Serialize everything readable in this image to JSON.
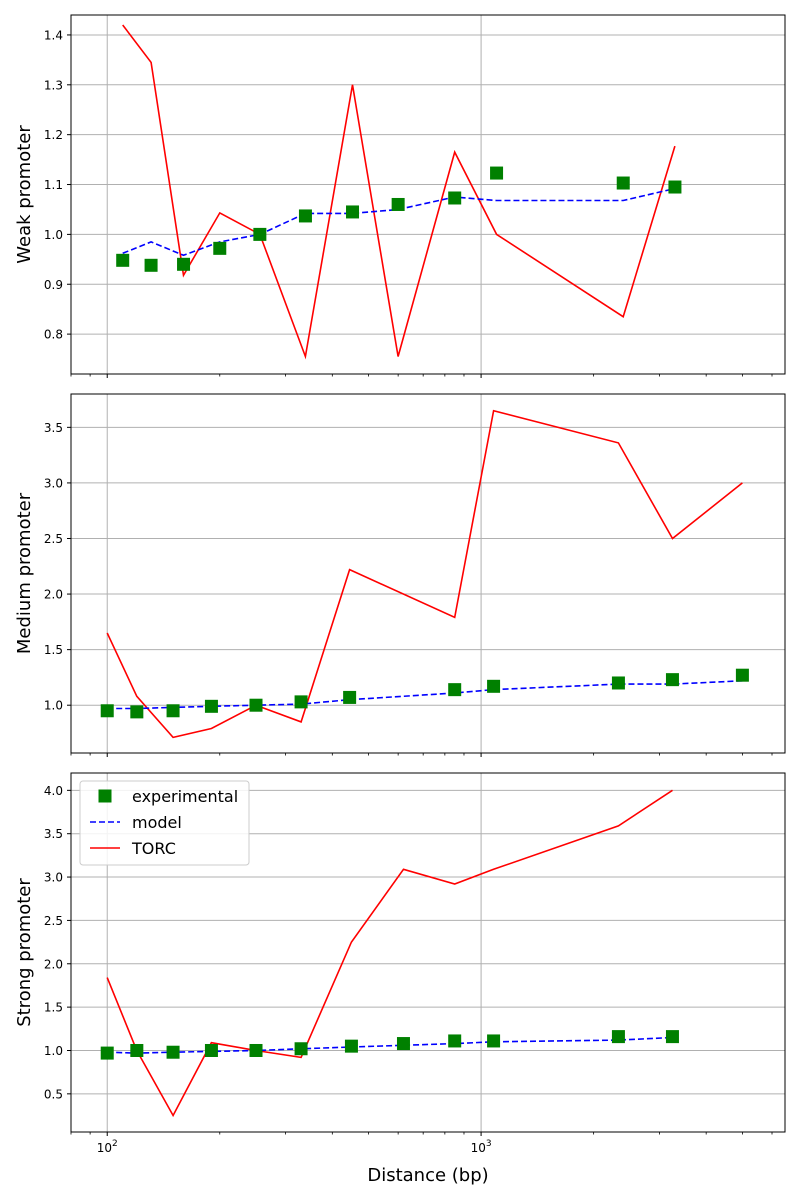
{
  "figure": {
    "xlabel": "Distance (bp)",
    "xscale": "log",
    "xlim": [
      80,
      6500
    ],
    "x_major_ticks": [
      100,
      1000
    ],
    "x_major_tick_labels": [
      {
        "base": "10",
        "exp": "2"
      },
      {
        "base": "10",
        "exp": "3"
      }
    ],
    "grid": true,
    "colors": {
      "experimental": "#008000",
      "model": "#0000ff",
      "torc": "#ff0000",
      "grid": "#b0b0b0"
    }
  },
  "legend": {
    "placement": "top-left",
    "panel": 2,
    "entries": [
      {
        "key": "experimental",
        "label": "experimental"
      },
      {
        "key": "model",
        "label": "model"
      },
      {
        "key": "torc",
        "label": "TORC"
      }
    ]
  },
  "chart_data": [
    {
      "type": "line",
      "ylabel": "Weak promoter",
      "ylim": [
        0.72,
        1.44
      ],
      "yticks": [
        0.8,
        0.9,
        1.0,
        1.1,
        1.2,
        1.3,
        1.4
      ],
      "ytick_labels": [
        "0.8",
        "0.9",
        "1.0",
        "1.1",
        "1.2",
        "1.3",
        "1.4"
      ],
      "series": [
        {
          "key": "experimental",
          "style": "markers",
          "x": [
            110,
            131,
            160,
            200,
            256,
            339,
            453,
            600,
            850,
            1100,
            2400,
            3300
          ],
          "y": [
            0.948,
            0.938,
            0.94,
            0.972,
            1.0,
            1.037,
            1.045,
            1.06,
            1.073,
            1.123,
            1.103,
            1.095
          ]
        },
        {
          "key": "model",
          "style": "dashed",
          "x": [
            110,
            131,
            160,
            200,
            256,
            339,
            453,
            600,
            850,
            1100,
            2400,
            3300
          ],
          "y": [
            0.962,
            0.985,
            0.958,
            0.985,
            1.0,
            1.042,
            1.042,
            1.05,
            1.075,
            1.068,
            1.068,
            1.092
          ]
        },
        {
          "key": "torc",
          "style": "solid",
          "x": [
            110,
            131,
            160,
            200,
            256,
            339,
            453,
            600,
            850,
            1100,
            2400,
            3300
          ],
          "y": [
            1.42,
            1.345,
            0.918,
            1.043,
            1.0,
            0.755,
            1.3,
            0.755,
            1.165,
            1.0,
            0.835,
            1.177
          ]
        }
      ]
    },
    {
      "type": "line",
      "ylabel": "Medium promoter",
      "ylim": [
        0.57,
        3.8
      ],
      "yticks": [
        1.0,
        1.5,
        2.0,
        2.5,
        3.0,
        3.5
      ],
      "ytick_labels": [
        "1.0",
        "1.5",
        "2.0",
        "2.5",
        "3.0",
        "3.5"
      ],
      "series": [
        {
          "key": "experimental",
          "style": "markers",
          "x": [
            100,
            120,
            150,
            190,
            250,
            330,
            445,
            850,
            1080,
            2330,
            3250,
            5000
          ],
          "y": [
            0.95,
            0.94,
            0.95,
            0.99,
            1.0,
            1.03,
            1.07,
            1.14,
            1.17,
            1.2,
            1.23,
            1.27
          ]
        },
        {
          "key": "model",
          "style": "dashed",
          "x": [
            100,
            120,
            150,
            190,
            250,
            330,
            445,
            850,
            1080,
            2330,
            3250,
            5000
          ],
          "y": [
            0.97,
            0.97,
            0.98,
            0.99,
            1.0,
            1.01,
            1.05,
            1.11,
            1.14,
            1.19,
            1.19,
            1.22
          ]
        },
        {
          "key": "torc",
          "style": "solid",
          "x": [
            100,
            120,
            150,
            190,
            250,
            330,
            445,
            850,
            1080,
            2330,
            3250,
            5000
          ],
          "y": [
            1.65,
            1.08,
            0.71,
            0.79,
            1.0,
            0.85,
            2.22,
            1.79,
            3.65,
            3.36,
            2.5,
            3.0
          ]
        }
      ]
    },
    {
      "type": "line",
      "ylabel": "Strong promoter",
      "ylim": [
        0.06,
        4.2
      ],
      "yticks": [
        0.5,
        1.0,
        1.5,
        2.0,
        2.5,
        3.0,
        3.5,
        4.0
      ],
      "ytick_labels": [
        "0.5",
        "1.0",
        "1.5",
        "2.0",
        "2.5",
        "3.0",
        "3.5",
        "4.0"
      ],
      "series": [
        {
          "key": "experimental",
          "style": "markers",
          "x": [
            100,
            120,
            150,
            190,
            250,
            330,
            450,
            620,
            850,
            1080,
            2330,
            3250
          ],
          "y": [
            0.97,
            1.0,
            0.98,
            1.0,
            1.0,
            1.02,
            1.05,
            1.08,
            1.11,
            1.11,
            1.16,
            1.16
          ]
        },
        {
          "key": "model",
          "style": "dashed",
          "x": [
            100,
            120,
            150,
            190,
            250,
            330,
            450,
            620,
            850,
            1080,
            2330,
            3250
          ],
          "y": [
            0.98,
            0.97,
            0.98,
            0.99,
            1.0,
            1.02,
            1.04,
            1.06,
            1.08,
            1.1,
            1.12,
            1.15
          ]
        },
        {
          "key": "torc",
          "style": "solid",
          "x": [
            100,
            120,
            150,
            190,
            250,
            330,
            450,
            620,
            850,
            1080,
            2330,
            3250
          ],
          "y": [
            1.84,
            1.0,
            0.25,
            1.09,
            1.0,
            0.92,
            2.25,
            3.09,
            2.92,
            3.09,
            3.59,
            4.0
          ]
        }
      ]
    }
  ]
}
